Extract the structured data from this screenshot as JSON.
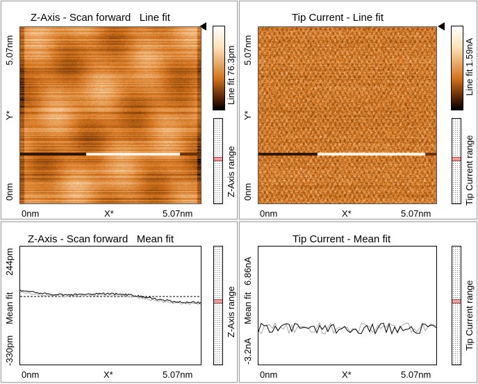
{
  "panels": {
    "topo_line": {
      "title": "Z-Axis - Scan forward   Line fit",
      "y_top": "5.07nm",
      "y_axis": "Y*",
      "y_bottom": "0nm",
      "x_left": "0nm",
      "x_axis": "X*",
      "x_right": "5.07nm",
      "colorbar_label": "Line fit 76.3pm",
      "range_label": "Z-Axis range"
    },
    "current_line": {
      "title": "Tip Current - Line fit",
      "y_top": "5.07nm",
      "y_axis": "Y*",
      "y_bottom": "0nm",
      "x_left": "0nm",
      "x_axis": "X*",
      "x_right": "5.07nm",
      "colorbar_label": "Line fit 1.59nA",
      "range_label": "Tip Current range"
    },
    "topo_mean": {
      "title": "Z-Axis - Scan forward   Mean fit",
      "y_top": "244pm",
      "y_axis": "Mean fit",
      "y_bottom": "-330pm",
      "x_left": "0nm",
      "x_axis": "X*",
      "x_right": "5.07nm",
      "range_label": "Z-Axis range"
    },
    "current_mean": {
      "title": "Tip Current - Mean fit",
      "y_top": "6.86nA",
      "y_axis": "Mean fit",
      "y_bottom": "-3.2nA",
      "x_left": "0nm",
      "x_axis": "X*",
      "x_right": "5.07nm",
      "range_label": "Tip Current range"
    }
  },
  "colors": {
    "orange_dark": "#4a1e00",
    "orange_mid": "#d6741c",
    "orange_light": "#ffe2b8"
  },
  "icons": {
    "panel_menu": "triangle-left-icon"
  }
}
